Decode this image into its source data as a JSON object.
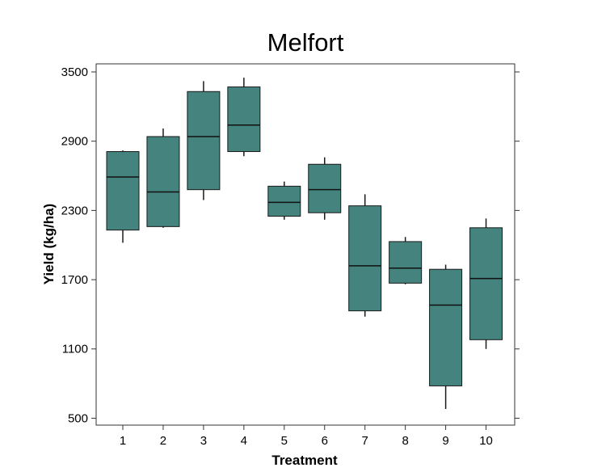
{
  "chart_data": {
    "type": "box",
    "title": "Melfort",
    "xlabel": "Treatment",
    "ylabel": "Yield (kg/ha)",
    "ylim": [
      440,
      3570
    ],
    "yticks": [
      500,
      1100,
      1700,
      2300,
      2900,
      3500
    ],
    "grid": false,
    "legend": "none",
    "box_color": "#44837e",
    "edge_color": "#1a1a1a",
    "categories": [
      "1",
      "2",
      "3",
      "4",
      "5",
      "6",
      "7",
      "8",
      "9",
      "10"
    ],
    "boxes": [
      {
        "label": "1",
        "whisker_low": 2020,
        "q1": 2130,
        "median": 2590,
        "q3": 2810,
        "whisker_high": 2820
      },
      {
        "label": "2",
        "whisker_low": 2150,
        "q1": 2160,
        "median": 2460,
        "q3": 2940,
        "whisker_high": 3010
      },
      {
        "label": "3",
        "whisker_low": 2390,
        "q1": 2480,
        "median": 2940,
        "q3": 3330,
        "whisker_high": 3420
      },
      {
        "label": "4",
        "whisker_low": 2770,
        "q1": 2810,
        "median": 3040,
        "q3": 3370,
        "whisker_high": 3450
      },
      {
        "label": "5",
        "whisker_low": 2220,
        "q1": 2250,
        "median": 2370,
        "q3": 2510,
        "whisker_high": 2550
      },
      {
        "label": "6",
        "whisker_low": 2220,
        "q1": 2280,
        "median": 2480,
        "q3": 2700,
        "whisker_high": 2760
      },
      {
        "label": "7",
        "whisker_low": 1380,
        "q1": 1430,
        "median": 1820,
        "q3": 2340,
        "whisker_high": 2440
      },
      {
        "label": "8",
        "whisker_low": 1660,
        "q1": 1670,
        "median": 1800,
        "q3": 2030,
        "whisker_high": 2070
      },
      {
        "label": "9",
        "whisker_low": 580,
        "q1": 780,
        "median": 1480,
        "q3": 1790,
        "whisker_high": 1830
      },
      {
        "label": "10",
        "whisker_low": 1100,
        "q1": 1180,
        "median": 1710,
        "q3": 2150,
        "whisker_high": 2230
      }
    ]
  }
}
